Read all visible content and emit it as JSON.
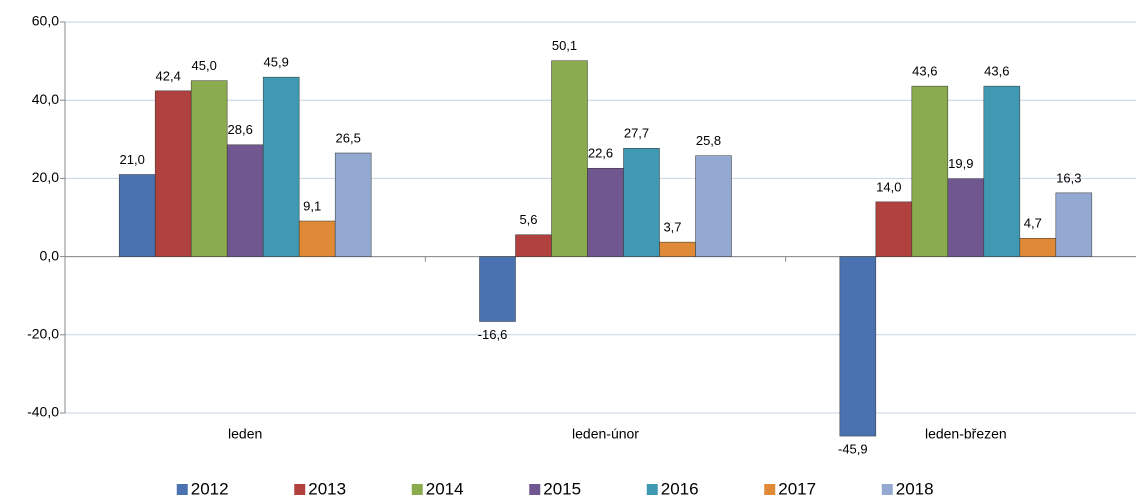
{
  "chart_data": {
    "type": "bar",
    "categories": [
      "leden",
      "leden-únor",
      "leden-březen"
    ],
    "series": [
      {
        "name": "2012",
        "color": "#4a72b0",
        "values": [
          21.0,
          -16.6,
          -45.9
        ],
        "value_labels": [
          "21,0",
          "-16,6",
          "-45,9"
        ]
      },
      {
        "name": "2013",
        "color": "#b0413e",
        "values": [
          42.4,
          5.6,
          14.0
        ],
        "value_labels": [
          "42,4",
          "5,6",
          "14,0"
        ]
      },
      {
        "name": "2014",
        "color": "#8aab4e",
        "values": [
          45.0,
          50.1,
          43.6
        ],
        "value_labels": [
          "45,0",
          "50,1",
          "43,6"
        ]
      },
      {
        "name": "2015",
        "color": "#71578f",
        "values": [
          28.6,
          22.6,
          19.9
        ],
        "value_labels": [
          "28,6",
          "22,6",
          "19,9"
        ]
      },
      {
        "name": "2016",
        "color": "#4099b2",
        "values": [
          45.9,
          27.7,
          43.6
        ],
        "value_labels": [
          "45,9",
          "27,7",
          "43,6"
        ]
      },
      {
        "name": "2017",
        "color": "#e08a38",
        "values": [
          9.1,
          3.7,
          4.7
        ],
        "value_labels": [
          "9,1",
          "3,7",
          "4,7"
        ]
      },
      {
        "name": "2018",
        "color": "#93a9d1",
        "values": [
          26.5,
          25.8,
          16.3
        ],
        "value_labels": [
          "26,5",
          "25,8",
          "16,3"
        ]
      }
    ],
    "ylim": [
      -40,
      60
    ],
    "yticks": [
      {
        "value": -40,
        "label": "-40,0"
      },
      {
        "value": -20,
        "label": "-20,0"
      },
      {
        "value": 0,
        "label": "0,0"
      },
      {
        "value": 20,
        "label": "20,0"
      },
      {
        "value": 40,
        "label": "40,0"
      },
      {
        "value": 60,
        "label": "60,0"
      }
    ],
    "grid": true,
    "legend": "bottom"
  }
}
